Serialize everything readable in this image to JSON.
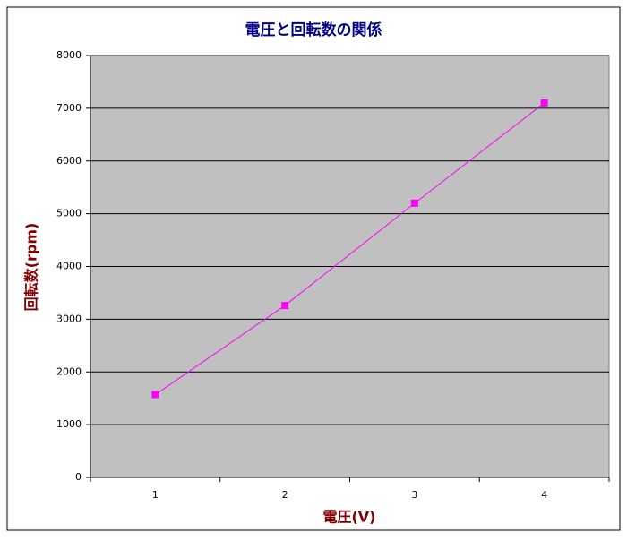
{
  "chart_data": {
    "type": "line",
    "title": "電圧と回転数の関係",
    "x_label": "電圧(V)",
    "y_label": "回転数(rpm)",
    "categories": [
      "1",
      "2",
      "3",
      "4"
    ],
    "series": [
      {
        "color": "#ff00ff",
        "values": [
          1570,
          3260,
          5200,
          7100
        ]
      }
    ],
    "ylim": [
      0,
      8000
    ],
    "yticks": [
      0,
      1000,
      2000,
      3000,
      4000,
      5000,
      6000,
      7000,
      8000
    ],
    "grid": true,
    "plot_background": "#c0c0c0"
  }
}
